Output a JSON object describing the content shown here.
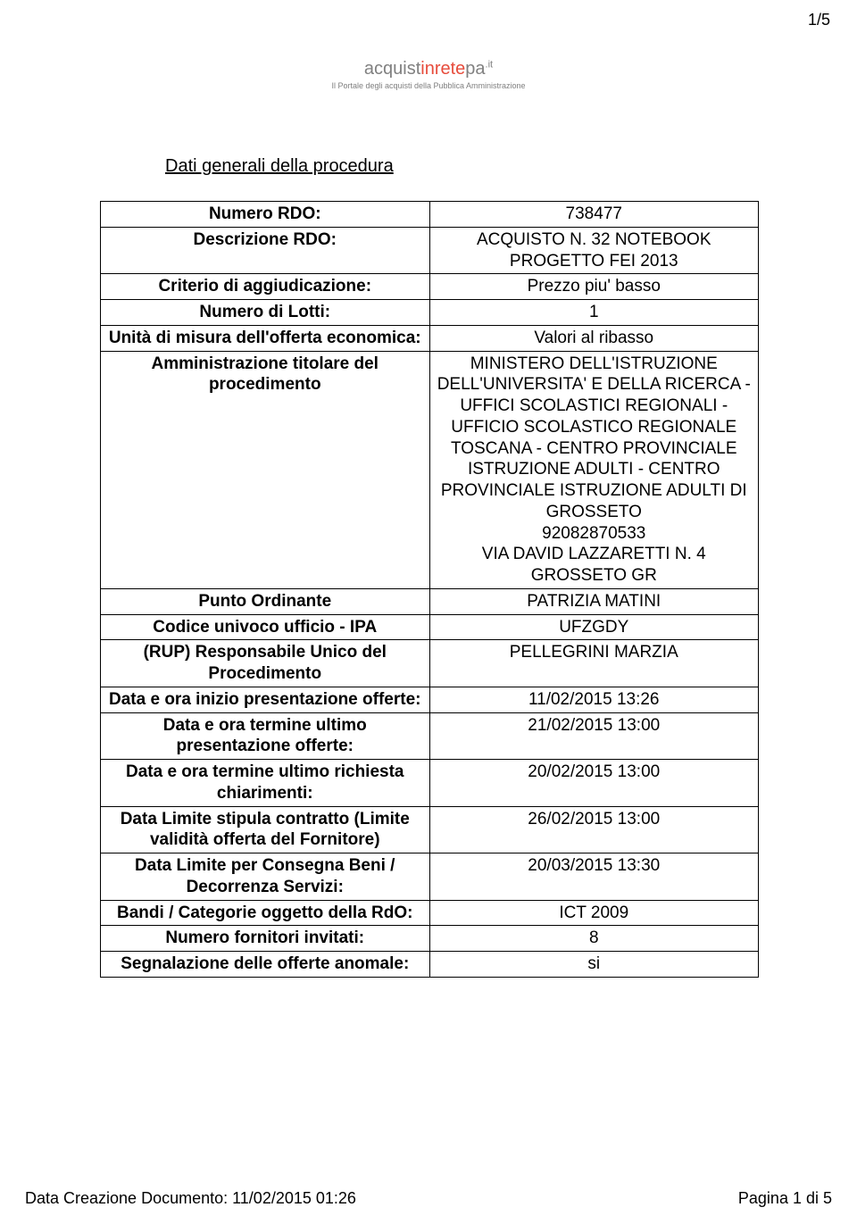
{
  "page_number_top": "1/5",
  "logo": {
    "brand_acq": "acquist",
    "brand_inrete": "inrete",
    "brand_pa": "pa",
    "brand_it": ".it",
    "sub": "Il Portale degli acquisti della Pubblica Amministrazione"
  },
  "section_title": "Dati generali della procedura",
  "rows": [
    {
      "label": "Numero RDO:",
      "value": "738477"
    },
    {
      "label": "Descrizione RDO:",
      "value": "ACQUISTO N. 32 NOTEBOOK PROGETTO FEI 2013"
    },
    {
      "label": "Criterio di aggiudicazione:",
      "value": "Prezzo piu' basso"
    },
    {
      "label": "Numero di Lotti:",
      "value": "1"
    },
    {
      "label": "Unità di misura dell'offerta economica:",
      "value": "Valori al ribasso"
    },
    {
      "label": "Amministrazione titolare del procedimento",
      "value": "MINISTERO DELL'ISTRUZIONE DELL'UNIVERSITA' E DELLA RICERCA - UFFICI SCOLASTICI REGIONALI - UFFICIO SCOLASTICO REGIONALE TOSCANA - CENTRO PROVINCIALE ISTRUZIONE ADULTI - CENTRO PROVINCIALE ISTRUZIONE ADULTI DI GROSSETO\n92082870533\nVIA DAVID LAZZARETTI N. 4 GROSSETO GR"
    },
    {
      "label": "Punto Ordinante",
      "value": "PATRIZIA MATINI"
    },
    {
      "label": "Codice univoco ufficio - IPA",
      "value": "UFZGDY"
    },
    {
      "label": "(RUP) Responsabile Unico del Procedimento",
      "value": "PELLEGRINI MARZIA"
    },
    {
      "label": "Data e ora inizio presentazione offerte:",
      "value": "11/02/2015 13:26"
    },
    {
      "label": "Data e ora termine ultimo presentazione offerte:",
      "value": "21/02/2015 13:00"
    },
    {
      "label": "Data e ora termine ultimo richiesta chiarimenti:",
      "value": "20/02/2015 13:00"
    },
    {
      "label": "Data Limite stipula contratto (Limite validità offerta del Fornitore)",
      "value": "26/02/2015 13:00"
    },
    {
      "label": "Data Limite per Consegna Beni / Decorrenza Servizi:",
      "value": "20/03/2015 13:30"
    },
    {
      "label": "Bandi / Categorie oggetto della RdO:",
      "value": "ICT 2009"
    },
    {
      "label": "Numero fornitori invitati:",
      "value": "8"
    },
    {
      "label": "Segnalazione delle offerte anomale:",
      "value": "si"
    }
  ],
  "footer": {
    "left": "Data Creazione Documento: 11/02/2015 01:26",
    "right": "Pagina 1 di 5"
  }
}
